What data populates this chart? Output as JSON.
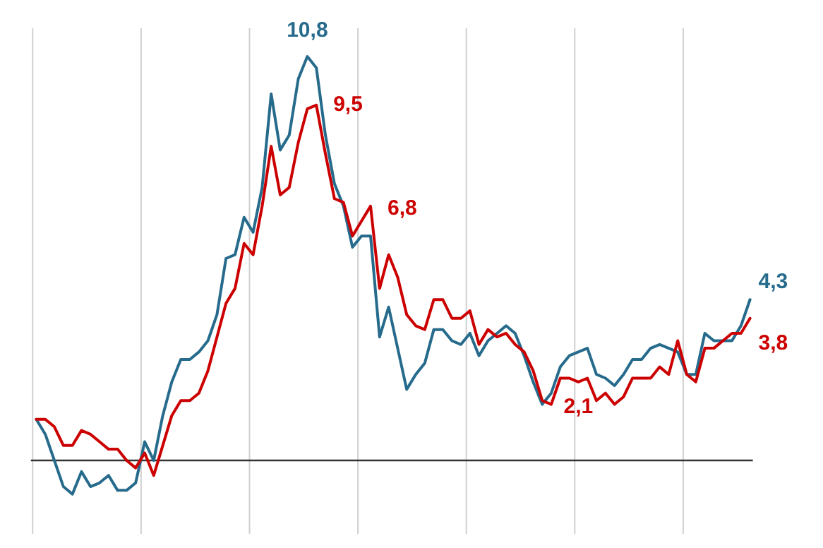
{
  "chart_data": {
    "type": "line",
    "grid": "x",
    "line_style": "solid",
    "categories": [
      null,
      null,
      null,
      null,
      null,
      null,
      null,
      null,
      null,
      null,
      null,
      null,
      null,
      null,
      null,
      null,
      null,
      null,
      null,
      null,
      null,
      null,
      null,
      null,
      null,
      null,
      null,
      null,
      null,
      null,
      null,
      null,
      null,
      null,
      null,
      null,
      null,
      null,
      null,
      null,
      null,
      null,
      null,
      null,
      null,
      null,
      null,
      null,
      null,
      null,
      null,
      null,
      null,
      null,
      null,
      null,
      null,
      null,
      null,
      null,
      null,
      null,
      null,
      null,
      null,
      null,
      null,
      null,
      null,
      null,
      null,
      null,
      null,
      null,
      null,
      null,
      null,
      null,
      null,
      null
    ],
    "series": [
      {
        "color": "#266b8c",
        "values": [
          1.1,
          0.7,
          0.0,
          -0.7,
          -0.9,
          -0.3,
          -0.7,
          -0.6,
          -0.4,
          -0.8,
          -0.8,
          -0.6,
          0.5,
          0.0,
          1.2,
          2.1,
          2.7,
          2.7,
          2.9,
          3.2,
          3.9,
          5.4,
          5.5,
          6.5,
          6.1,
          7.3,
          9.8,
          8.3,
          8.7,
          10.2,
          10.8,
          10.5,
          8.7,
          7.4,
          6.8,
          5.7,
          6.0,
          6.0,
          3.3,
          4.1,
          3.0,
          1.9,
          2.3,
          2.6,
          3.5,
          3.5,
          3.2,
          3.1,
          3.4,
          2.8,
          3.2,
          3.4,
          3.6,
          3.4,
          2.8,
          2.1,
          1.5,
          1.8,
          2.5,
          2.8,
          2.9,
          3.0,
          2.3,
          2.2,
          2.0,
          2.3,
          2.7,
          2.7,
          3.0,
          3.1,
          3.0,
          2.9,
          2.3,
          2.3,
          3.4,
          3.2,
          3.2,
          3.2,
          3.6,
          4.3
        ],
        "value_labels": [
          null,
          null,
          null,
          null,
          null,
          null,
          null,
          null,
          null,
          null,
          null,
          null,
          null,
          null,
          null,
          null,
          null,
          null,
          null,
          null,
          null,
          null,
          null,
          null,
          null,
          null,
          null,
          null,
          null,
          null,
          "10,8",
          null,
          null,
          null,
          null,
          null,
          null,
          null,
          null,
          null,
          null,
          null,
          null,
          null,
          null,
          null,
          null,
          null,
          null,
          null,
          null,
          null,
          null,
          null,
          null,
          null,
          null,
          null,
          null,
          null,
          null,
          null,
          null,
          null,
          null,
          null,
          null,
          null,
          null,
          null,
          null,
          null,
          null,
          null,
          null,
          null,
          null,
          null,
          null,
          "4,3"
        ]
      },
      {
        "color": "#cc0000",
        "values": [
          1.1,
          1.1,
          0.9,
          0.4,
          0.4,
          0.8,
          0.7,
          0.5,
          0.3,
          0.3,
          0.0,
          -0.2,
          0.2,
          -0.4,
          0.4,
          1.2,
          1.6,
          1.6,
          1.8,
          2.4,
          3.3,
          4.2,
          4.6,
          5.8,
          5.5,
          6.8,
          8.4,
          7.1,
          7.3,
          8.5,
          9.4,
          9.5,
          8.2,
          7.0,
          6.9,
          6.0,
          6.4,
          6.8,
          4.6,
          5.5,
          4.9,
          3.9,
          3.6,
          3.5,
          4.3,
          4.3,
          3.8,
          3.8,
          4.0,
          3.1,
          3.5,
          3.3,
          3.4,
          3.1,
          2.9,
          2.4,
          1.6,
          1.5,
          2.2,
          2.2,
          2.1,
          2.2,
          1.6,
          1.8,
          1.5,
          1.7,
          2.2,
          2.2,
          2.2,
          2.5,
          2.3,
          3.2,
          2.3,
          2.1,
          3.0,
          3.0,
          3.2,
          3.4,
          3.4,
          3.8
        ],
        "value_labels": [
          null,
          null,
          null,
          null,
          null,
          null,
          null,
          null,
          null,
          null,
          null,
          null,
          null,
          null,
          null,
          null,
          null,
          null,
          null,
          null,
          null,
          null,
          null,
          null,
          null,
          null,
          null,
          null,
          null,
          null,
          null,
          "9,5",
          null,
          null,
          null,
          null,
          null,
          "6,8",
          null,
          null,
          null,
          null,
          null,
          null,
          null,
          null,
          null,
          null,
          null,
          null,
          null,
          null,
          null,
          null,
          null,
          null,
          null,
          null,
          null,
          null,
          "2,1",
          null,
          null,
          null,
          null,
          null,
          null,
          null,
          null,
          null,
          null,
          null,
          null,
          null,
          null,
          null,
          null,
          null,
          null,
          "3,8"
        ]
      }
    ]
  }
}
